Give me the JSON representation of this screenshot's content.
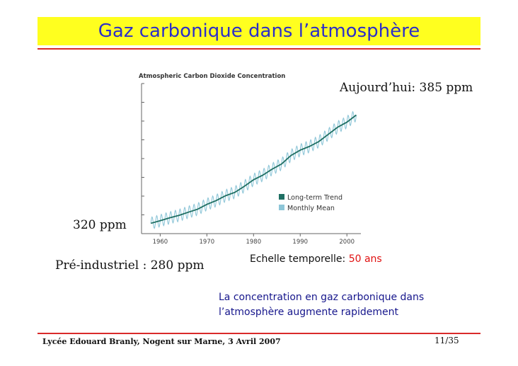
{
  "slide": {
    "title": "Gaz carbonique dans l’atmosphère",
    "today_label": "Aujourd’hui: 385 ppm",
    "start_label": "320 ppm",
    "preindustrial_label": "Pré-industriel : 280 ppm",
    "timescale_prefix": "Echelle temporelle: ",
    "timescale_value": "50 ans",
    "conclusion_line1": "La concentration en gaz carbonique dans",
    "conclusion_line2": "l’atmosphère augmente rapidement",
    "footer_left": "Lycée Edouard Branly, Nogent sur Marne, 3 Avril 2007",
    "page_number": "11/35"
  },
  "colors": {
    "title_band": "#ffff1f",
    "title_text": "#2c2ec9",
    "rule": "#d92a2a",
    "accent_red": "#e01010",
    "conclusion_text": "#16168c",
    "trend": "#1f6f63",
    "monthly": "#8ec6d8"
  },
  "chart_data": {
    "type": "line",
    "title": "Atmospheric Carbon Dioxide Concentration",
    "x_ticks": [
      "1960",
      "1970",
      "1980",
      "1990",
      "2000"
    ],
    "xlim": [
      1956,
      2003
    ],
    "ylim": [
      310,
      390
    ],
    "grid": false,
    "legend_position": "right",
    "legend": [
      "Long-term Trend",
      "Monthly Mean"
    ],
    "series": [
      {
        "name": "Long-term Trend",
        "color": "#1f6f63",
        "x": [
          1958,
          1960,
          1962,
          1964,
          1966,
          1968,
          1970,
          1972,
          1974,
          1976,
          1978,
          1980,
          1982,
          1984,
          1986,
          1988,
          1990,
          1992,
          1994,
          1996,
          1998,
          2000,
          2002
        ],
        "y": [
          315.5,
          316.9,
          318.4,
          319.7,
          321.4,
          323.0,
          325.6,
          327.6,
          330.2,
          332.0,
          335.2,
          338.7,
          341.2,
          344.4,
          347.1,
          351.6,
          354.5,
          356.5,
          359.1,
          362.9,
          366.7,
          369.4,
          373.2
        ]
      },
      {
        "name": "Monthly Mean",
        "color": "#8ec6d8",
        "seasonal_amplitude_ppm": 3.2
      }
    ]
  }
}
